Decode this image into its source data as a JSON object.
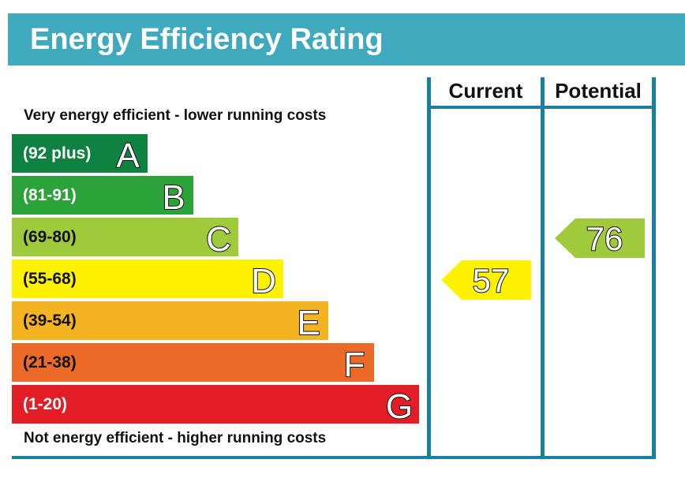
{
  "title": "Energy Efficiency Rating",
  "columns": {
    "current": "Current",
    "potential": "Potential"
  },
  "top_note": "Very energy efficient - lower running costs",
  "bottom_note": "Not energy efficient - higher running costs",
  "colors": {
    "header": "#3fa9bd",
    "rule": "#1a7fa0"
  },
  "chart_data": {
    "type": "bar",
    "title": "Energy Efficiency Rating",
    "bands": [
      {
        "letter": "A",
        "range": "(92 plus)",
        "min": 92,
        "max": 100,
        "color": "#0f8140",
        "text_color": "#ffffff"
      },
      {
        "letter": "B",
        "range": "(81-91)",
        "min": 81,
        "max": 91,
        "color": "#2ca338",
        "text_color": "#ffffff"
      },
      {
        "letter": "C",
        "range": "(69-80)",
        "min": 69,
        "max": 80,
        "color": "#9fca3c",
        "text_color": "#111111"
      },
      {
        "letter": "D",
        "range": "(55-68)",
        "min": 55,
        "max": 68,
        "color": "#fff200",
        "text_color": "#111111"
      },
      {
        "letter": "E",
        "range": "(39-54)",
        "min": 39,
        "max": 54,
        "color": "#f4b321",
        "text_color": "#111111"
      },
      {
        "letter": "F",
        "range": "(21-38)",
        "min": 21,
        "max": 38,
        "color": "#eb6a27",
        "text_color": "#111111"
      },
      {
        "letter": "G",
        "range": "(1-20)",
        "min": 1,
        "max": 20,
        "color": "#e21d25",
        "text_color": "#ffffff"
      }
    ],
    "current": {
      "label": "Current",
      "value": 57,
      "band": "D"
    },
    "potential": {
      "label": "Potential",
      "value": 76,
      "band": "C"
    }
  }
}
